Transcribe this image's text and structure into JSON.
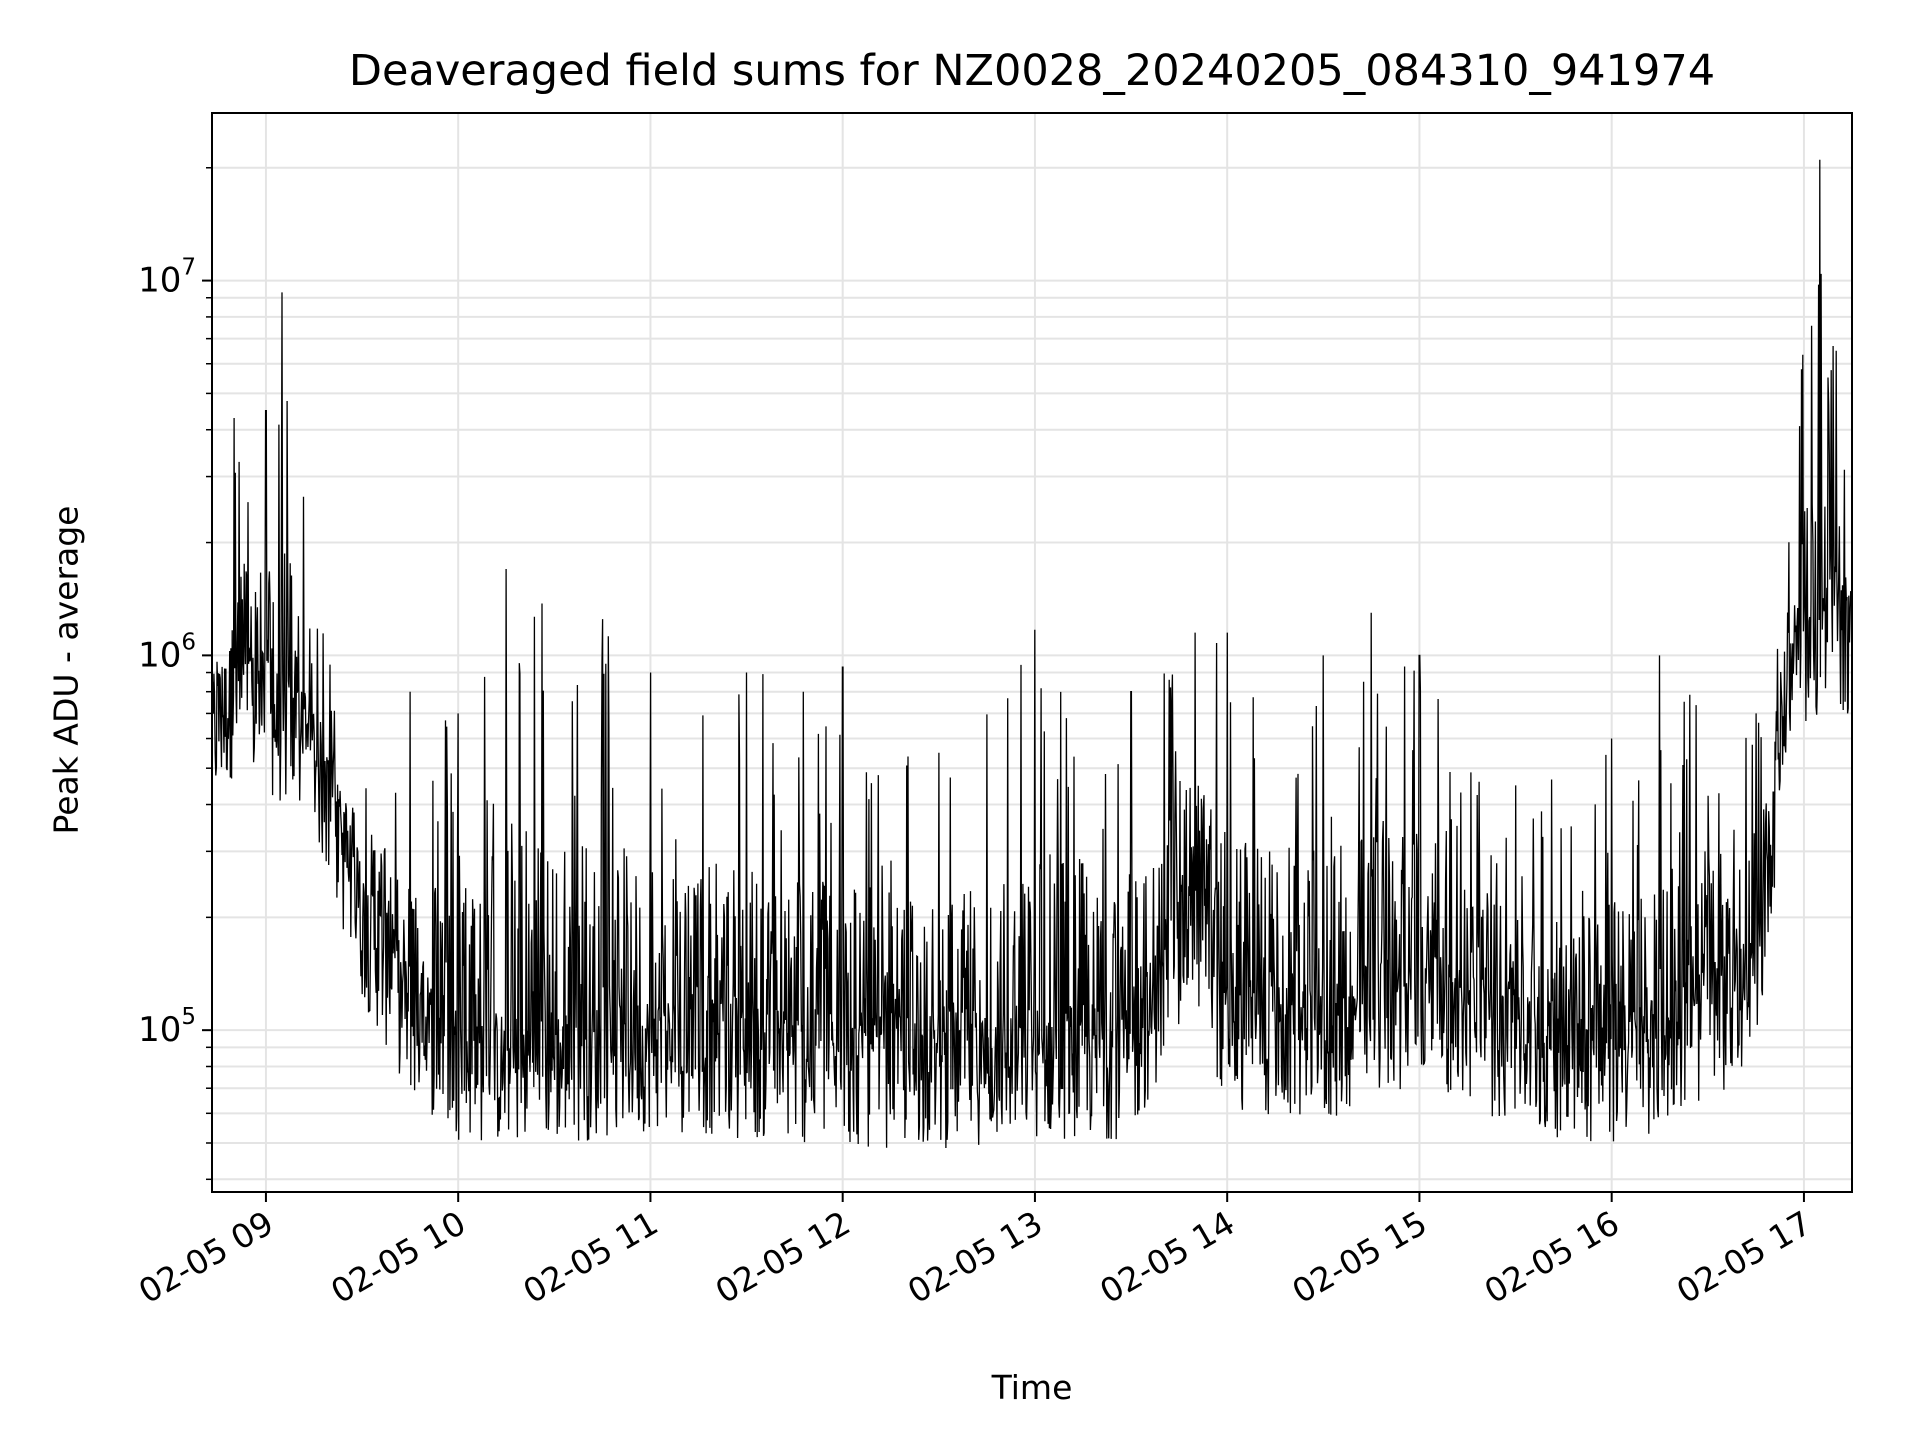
{
  "chart_data": {
    "type": "line",
    "title": "Deaveraged field sums for NZ0028_20240205_084310_941974",
    "xlabel": "Time",
    "ylabel": "Peak ADU - average",
    "x_tick_labels": [
      "02-05 09",
      "02-05 10",
      "02-05 11",
      "02-05 12",
      "02-05 13",
      "02-05 14",
      "02-05 15",
      "02-05 16",
      "02-05 17"
    ],
    "y_scale": "log",
    "y_ticks": [
      {
        "base": "10",
        "exp": "5",
        "value": 100000
      },
      {
        "base": "10",
        "exp": "6",
        "value": 1000000
      },
      {
        "base": "10",
        "exp": "7",
        "value": 10000000
      }
    ],
    "xlim": [
      "2024-02-05 08:43:10",
      "2024-02-05 17:15:00"
    ],
    "ylim": [
      37000,
      28000000
    ],
    "grid": true,
    "line_color": "#000000",
    "series": [
      {
        "values_are_approximate_envelope": true,
        "points": [
          {
            "x": "2024-02-05 08:43",
            "baseline": 600000,
            "peak": 1200000
          },
          {
            "x": "2024-02-05 08:50",
            "baseline": 800000,
            "peak": 4300000
          },
          {
            "x": "2024-02-05 09:00",
            "baseline": 700000,
            "peak": 4500000
          },
          {
            "x": "2024-02-05 09:05",
            "baseline": 650000,
            "peak": 9300000
          },
          {
            "x": "2024-02-05 09:15",
            "baseline": 550000,
            "peak": 1450000
          },
          {
            "x": "2024-02-05 09:30",
            "baseline": 200000,
            "peak": 600000
          },
          {
            "x": "2024-02-05 09:45",
            "baseline": 110000,
            "peak": 800000
          },
          {
            "x": "2024-02-05 10:00",
            "baseline": 85000,
            "peak": 700000
          },
          {
            "x": "2024-02-05 10:15",
            "baseline": 80000,
            "peak": 1700000
          },
          {
            "x": "2024-02-05 10:45",
            "baseline": 85000,
            "peak": 1250000
          },
          {
            "x": "2024-02-05 11:00",
            "baseline": 90000,
            "peak": 900000
          },
          {
            "x": "2024-02-05 11:30",
            "baseline": 85000,
            "peak": 900000
          },
          {
            "x": "2024-02-05 12:00",
            "baseline": 80000,
            "peak": 930000
          },
          {
            "x": "2024-02-05 12:30",
            "baseline": 80000,
            "peak": 550000
          },
          {
            "x": "2024-02-05 13:00",
            "baseline": 85000,
            "peak": 1170000
          },
          {
            "x": "2024-02-05 13:30",
            "baseline": 85000,
            "peak": 800000
          },
          {
            "x": "2024-02-05 13:50",
            "baseline": 200000,
            "peak": 1150000
          },
          {
            "x": "2024-02-05 14:00",
            "baseline": 100000,
            "peak": 1150000
          },
          {
            "x": "2024-02-05 14:30",
            "baseline": 90000,
            "peak": 1000000
          },
          {
            "x": "2024-02-05 14:45",
            "baseline": 110000,
            "peak": 1300000
          },
          {
            "x": "2024-02-05 15:00",
            "baseline": 120000,
            "peak": 1000000
          },
          {
            "x": "2024-02-05 15:30",
            "baseline": 90000,
            "peak": 450000
          },
          {
            "x": "2024-02-05 16:00",
            "baseline": 80000,
            "peak": 600000
          },
          {
            "x": "2024-02-05 16:15",
            "baseline": 90000,
            "peak": 1000000
          },
          {
            "x": "2024-02-05 16:45",
            "baseline": 130000,
            "peak": 700000
          },
          {
            "x": "2024-02-05 16:55",
            "baseline": 900000,
            "peak": 2300000
          },
          {
            "x": "2024-02-05 17:05",
            "baseline": 1100000,
            "peak": 21000000
          },
          {
            "x": "2024-02-05 17:10",
            "baseline": 1200000,
            "peak": 6500000
          },
          {
            "x": "2024-02-05 17:15",
            "baseline": 1100000,
            "peak": 1700000
          }
        ]
      }
    ]
  }
}
